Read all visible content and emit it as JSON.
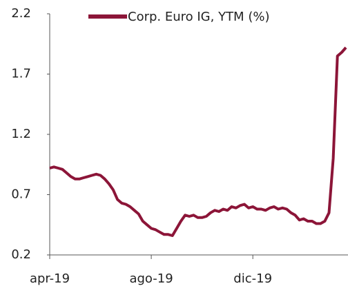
{
  "chart_data": {
    "type": "line",
    "categories": [
      "apr-19",
      null,
      null,
      null,
      null,
      null,
      null,
      null,
      null,
      null,
      null,
      null,
      null,
      null,
      null,
      null,
      null,
      null,
      null,
      null,
      null,
      null,
      null,
      null,
      "ago-19",
      null,
      null,
      null,
      null,
      null,
      null,
      null,
      null,
      null,
      null,
      null,
      null,
      null,
      null,
      null,
      null,
      null,
      null,
      null,
      null,
      null,
      null,
      null,
      "dic-19",
      null,
      null,
      null,
      null,
      null,
      null,
      null,
      null,
      null,
      null,
      null,
      null,
      null,
      null,
      null,
      null,
      null,
      null,
      null,
      null,
      null,
      null
    ],
    "series": [
      {
        "name": "Corp. Euro IG, YTM (%)",
        "color": "#8c1538",
        "values": [
          0.92,
          0.93,
          0.92,
          0.91,
          0.88,
          0.85,
          0.83,
          0.83,
          0.84,
          0.85,
          0.86,
          0.87,
          0.86,
          0.83,
          0.79,
          0.74,
          0.66,
          0.63,
          0.62,
          0.6,
          0.57,
          0.54,
          0.48,
          0.45,
          0.42,
          0.41,
          0.39,
          0.37,
          0.37,
          0.36,
          0.42,
          0.48,
          0.53,
          0.52,
          0.53,
          0.51,
          0.51,
          0.52,
          0.55,
          0.57,
          0.56,
          0.58,
          0.57,
          0.6,
          0.59,
          0.61,
          0.62,
          0.59,
          0.6,
          0.58,
          0.58,
          0.57,
          0.59,
          0.6,
          0.58,
          0.59,
          0.58,
          0.55,
          0.53,
          0.49,
          0.5,
          0.48,
          0.48,
          0.46,
          0.46,
          0.48,
          0.55,
          1.0,
          1.85,
          1.88,
          1.92
        ]
      }
    ],
    "ylim": [
      0.2,
      2.2
    ],
    "yticks": [
      0.2,
      0.7,
      1.2,
      1.7,
      2.2
    ],
    "legend": "top"
  }
}
